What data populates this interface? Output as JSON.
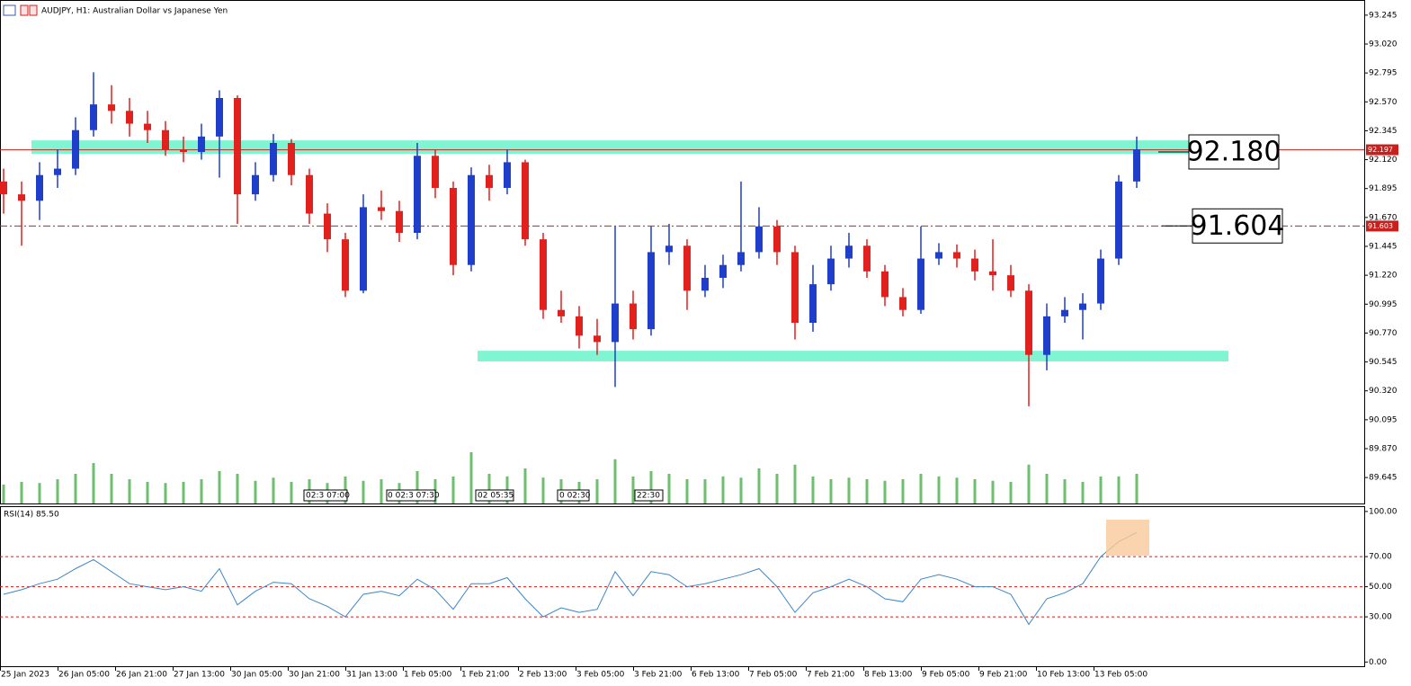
{
  "header": {
    "title": "AUDJPY, H1:  Australian Dollar vs Japanese Yen"
  },
  "chart_data": [
    {
      "type": "candlestick",
      "x": [
        1,
        6,
        11,
        16,
        21,
        26,
        31,
        36,
        41,
        46,
        51,
        56,
        61,
        66,
        71,
        76,
        81,
        86,
        91,
        96,
        101,
        106,
        111,
        116,
        121,
        126,
        131,
        136,
        141,
        146,
        151,
        156,
        161,
        166,
        171,
        176,
        181,
        186,
        191,
        196,
        201,
        206,
        211,
        216,
        221,
        226,
        231,
        236,
        241,
        246,
        251,
        256,
        261,
        266,
        271,
        276,
        281,
        286,
        291,
        296,
        301,
        306,
        311,
        316
      ],
      "open": [
        91.95,
        91.85,
        91.8,
        92.0,
        92.05,
        92.35,
        92.55,
        92.5,
        92.4,
        92.35,
        92.2,
        92.18,
        92.3,
        92.6,
        91.85,
        92.0,
        92.25,
        92.0,
        91.7,
        91.5,
        91.1,
        91.75,
        91.72,
        91.55,
        92.15,
        91.9,
        91.3,
        92.0,
        91.9,
        92.1,
        91.5,
        90.95,
        90.9,
        90.75,
        90.7,
        91.0,
        90.8,
        91.4,
        91.45,
        91.1,
        91.2,
        91.3,
        91.4,
        91.6,
        91.4,
        90.85,
        91.15,
        91.35,
        91.45,
        91.25,
        91.05,
        90.95,
        91.35,
        91.4,
        91.35,
        91.25,
        91.22,
        91.1,
        90.6,
        90.9,
        90.95,
        91.0,
        91.35,
        91.95
      ],
      "high": [
        92.05,
        91.95,
        92.1,
        92.2,
        92.45,
        92.8,
        92.7,
        92.6,
        92.5,
        92.42,
        92.3,
        92.4,
        92.66,
        92.62,
        92.1,
        92.32,
        92.28,
        92.05,
        91.78,
        91.55,
        91.85,
        91.88,
        91.8,
        92.25,
        92.2,
        91.95,
        92.06,
        92.08,
        92.2,
        92.12,
        91.55,
        91.1,
        90.98,
        90.88,
        91.6,
        91.1,
        91.6,
        91.62,
        91.5,
        91.3,
        91.38,
        91.95,
        91.75,
        91.65,
        91.45,
        91.3,
        91.45,
        91.55,
        91.5,
        91.3,
        91.12,
        91.6,
        91.47,
        91.46,
        91.42,
        91.5,
        91.3,
        91.15,
        91.0,
        91.05,
        91.08,
        91.42,
        92.0,
        92.3
      ],
      "low": [
        91.7,
        91.45,
        91.65,
        91.9,
        92.0,
        92.3,
        92.4,
        92.3,
        92.25,
        92.15,
        92.1,
        92.12,
        91.98,
        91.62,
        91.8,
        91.95,
        91.92,
        91.62,
        91.4,
        91.05,
        91.08,
        91.65,
        91.48,
        91.5,
        91.82,
        91.22,
        91.25,
        91.8,
        91.85,
        91.45,
        90.88,
        90.85,
        90.65,
        90.6,
        90.35,
        90.72,
        90.75,
        91.3,
        90.95,
        91.05,
        91.12,
        91.25,
        91.35,
        91.3,
        90.72,
        90.78,
        91.1,
        91.28,
        91.2,
        90.98,
        90.9,
        90.92,
        91.3,
        91.28,
        91.18,
        91.1,
        91.05,
        90.2,
        90.48,
        90.85,
        90.72,
        90.95,
        91.3,
        91.9
      ],
      "close": [
        91.85,
        91.8,
        92.0,
        92.05,
        92.35,
        92.55,
        92.5,
        92.4,
        92.35,
        92.2,
        92.18,
        92.3,
        92.6,
        91.85,
        92.0,
        92.25,
        92.0,
        91.7,
        91.5,
        91.1,
        91.75,
        91.72,
        91.55,
        92.15,
        91.9,
        91.3,
        92.0,
        91.9,
        92.1,
        91.5,
        90.95,
        90.9,
        90.75,
        90.7,
        91.0,
        90.8,
        91.4,
        91.45,
        91.1,
        91.2,
        91.3,
        91.4,
        91.6,
        91.4,
        90.85,
        91.15,
        91.35,
        91.45,
        91.25,
        91.05,
        90.95,
        91.35,
        91.4,
        91.35,
        91.25,
        91.22,
        91.1,
        90.6,
        90.9,
        90.95,
        91.0,
        91.35,
        91.95,
        92.2
      ],
      "up_color": "#1f3ec9",
      "down_color": "#e0211d",
      "xlim": [
        0,
        379.25
      ],
      "xticks": [
        {
          "value": 0,
          "label": "25 Jan 2023"
        },
        {
          "value": 16,
          "label": "26 Jan 05:00"
        },
        {
          "value": 32,
          "label": "26 Jan 21:00"
        },
        {
          "value": 48,
          "label": "27 Jan 13:00"
        },
        {
          "value": 64,
          "label": "30 Jan 05:00"
        },
        {
          "value": 80,
          "label": "30 Jan 21:00"
        },
        {
          "value": 96,
          "label": "31 Jan 13:00"
        },
        {
          "value": 112,
          "label": "1 Feb 05:00"
        },
        {
          "value": 128,
          "label": "1 Feb 21:00"
        },
        {
          "value": 144,
          "label": "2 Feb 13:00"
        },
        {
          "value": 160,
          "label": "3 Feb 05:00"
        },
        {
          "value": 176,
          "label": "3 Feb 21:00"
        },
        {
          "value": 192,
          "label": "6 Feb 13:00"
        },
        {
          "value": 208,
          "label": "7 Feb 05:00"
        },
        {
          "value": 224,
          "label": "7 Feb 21:00"
        },
        {
          "value": 240,
          "label": "8 Feb 13:00"
        },
        {
          "value": 256,
          "label": "9 Feb 05:00"
        },
        {
          "value": 272,
          "label": "9 Feb 21:00"
        },
        {
          "value": 288,
          "label": "10 Feb 13:00"
        },
        {
          "value": 304,
          "label": "13 Feb 05:00"
        }
      ],
      "ylim": [
        89.443,
        93.363
      ],
      "yticks": [
        93.245,
        {
          "value": 93.02,
          "label": "93.020"
        },
        92.795,
        {
          "value": 92.57,
          "label": "92.570"
        },
        92.345,
        {
          "value": 92.12,
          "label": "92.120"
        },
        91.895,
        {
          "value": 91.67,
          "label": "91.670"
        },
        91.445,
        {
          "value": 91.22,
          "label": "91.220"
        },
        90.995,
        {
          "value": 90.77,
          "label": "90.770"
        },
        90.545,
        {
          "value": 90.32,
          "label": "90.320"
        },
        90.095,
        {
          "value": 89.87,
          "label": "89.870"
        },
        89.645
      ],
      "volume": {
        "values": [
          35,
          40,
          38,
          45,
          55,
          75,
          55,
          45,
          40,
          38,
          40,
          45,
          60,
          55,
          42,
          48,
          40,
          45,
          38,
          50,
          42,
          45,
          38,
          60,
          45,
          50,
          95,
          55,
          50,
          65,
          48,
          45,
          40,
          45,
          82,
          50,
          60,
          55,
          45,
          45,
          50,
          48,
          65,
          55,
          72,
          50,
          45,
          48,
          45,
          42,
          45,
          55,
          50,
          48,
          45,
          42,
          40,
          72,
          55,
          45,
          40,
          50,
          50,
          55
        ],
        "vlim": [
          0,
          100
        ],
        "color": "#6cbf6c"
      },
      "zones": [
        {
          "from": 92.165,
          "to": 92.27,
          "x": [
            8.75,
            332.5
          ],
          "color": "#7ff5d2"
        },
        {
          "from": 90.549,
          "to": 90.632,
          "x": [
            132.75,
            341.5
          ],
          "color": "#7ff5d2"
        }
      ],
      "price_lines": [
        {
          "value": 92.197,
          "style": "solid",
          "color": "#c8201c"
        },
        {
          "value": 91.603,
          "style": "dashdot",
          "color": "#c8201c"
        }
      ],
      "annotations": [
        {
          "value": 92.18,
          "label": "92.180"
        },
        {
          "value": 91.604,
          "label": "91.604"
        }
      ],
      "overlay_labels": [
        "02:3 07:00",
        "0 02:3 07:30",
        "02 05:35",
        "0 02:30",
        "22:30"
      ]
    },
    {
      "type": "line",
      "title": "RSI(14) 85.50",
      "x": [
        1,
        6,
        11,
        16,
        21,
        26,
        31,
        36,
        41,
        46,
        51,
        56,
        61,
        66,
        71,
        76,
        81,
        86,
        91,
        96,
        101,
        106,
        111,
        116,
        121,
        126,
        131,
        136,
        141,
        146,
        151,
        156,
        161,
        166,
        171,
        176,
        181,
        186,
        191,
        196,
        201,
        206,
        211,
        216,
        221,
        226,
        231,
        236,
        241,
        246,
        251,
        256,
        261,
        266,
        271,
        276,
        281,
        286,
        291,
        296,
        301,
        306,
        311,
        316
      ],
      "values": [
        45,
        48,
        52,
        55,
        62,
        68,
        60,
        52,
        50,
        48,
        50,
        47,
        62,
        38,
        47,
        53,
        52,
        42,
        37,
        30,
        45,
        47,
        44,
        55,
        48,
        35,
        52,
        52,
        56,
        42,
        30,
        36,
        33,
        35,
        60,
        44,
        60,
        58,
        50,
        52,
        55,
        58,
        62,
        50,
        33,
        46,
        50,
        55,
        50,
        42,
        40,
        55,
        58,
        55,
        50,
        50,
        45,
        25,
        42,
        46,
        52,
        70,
        80,
        86
      ],
      "color": "#3d86c6",
      "ylim": [
        -2.8,
        103.5
      ],
      "yticks": [
        {
          "value": 100,
          "label": "100.00"
        },
        {
          "value": 70,
          "label": "70.00"
        },
        {
          "value": 50,
          "label": "50.00"
        },
        {
          "value": 30,
          "label": "30.00"
        },
        {
          "value": 0,
          "label": "0.00"
        }
      ],
      "levels": [
        70,
        50,
        30
      ],
      "level_color": "#c8201c"
    }
  ]
}
